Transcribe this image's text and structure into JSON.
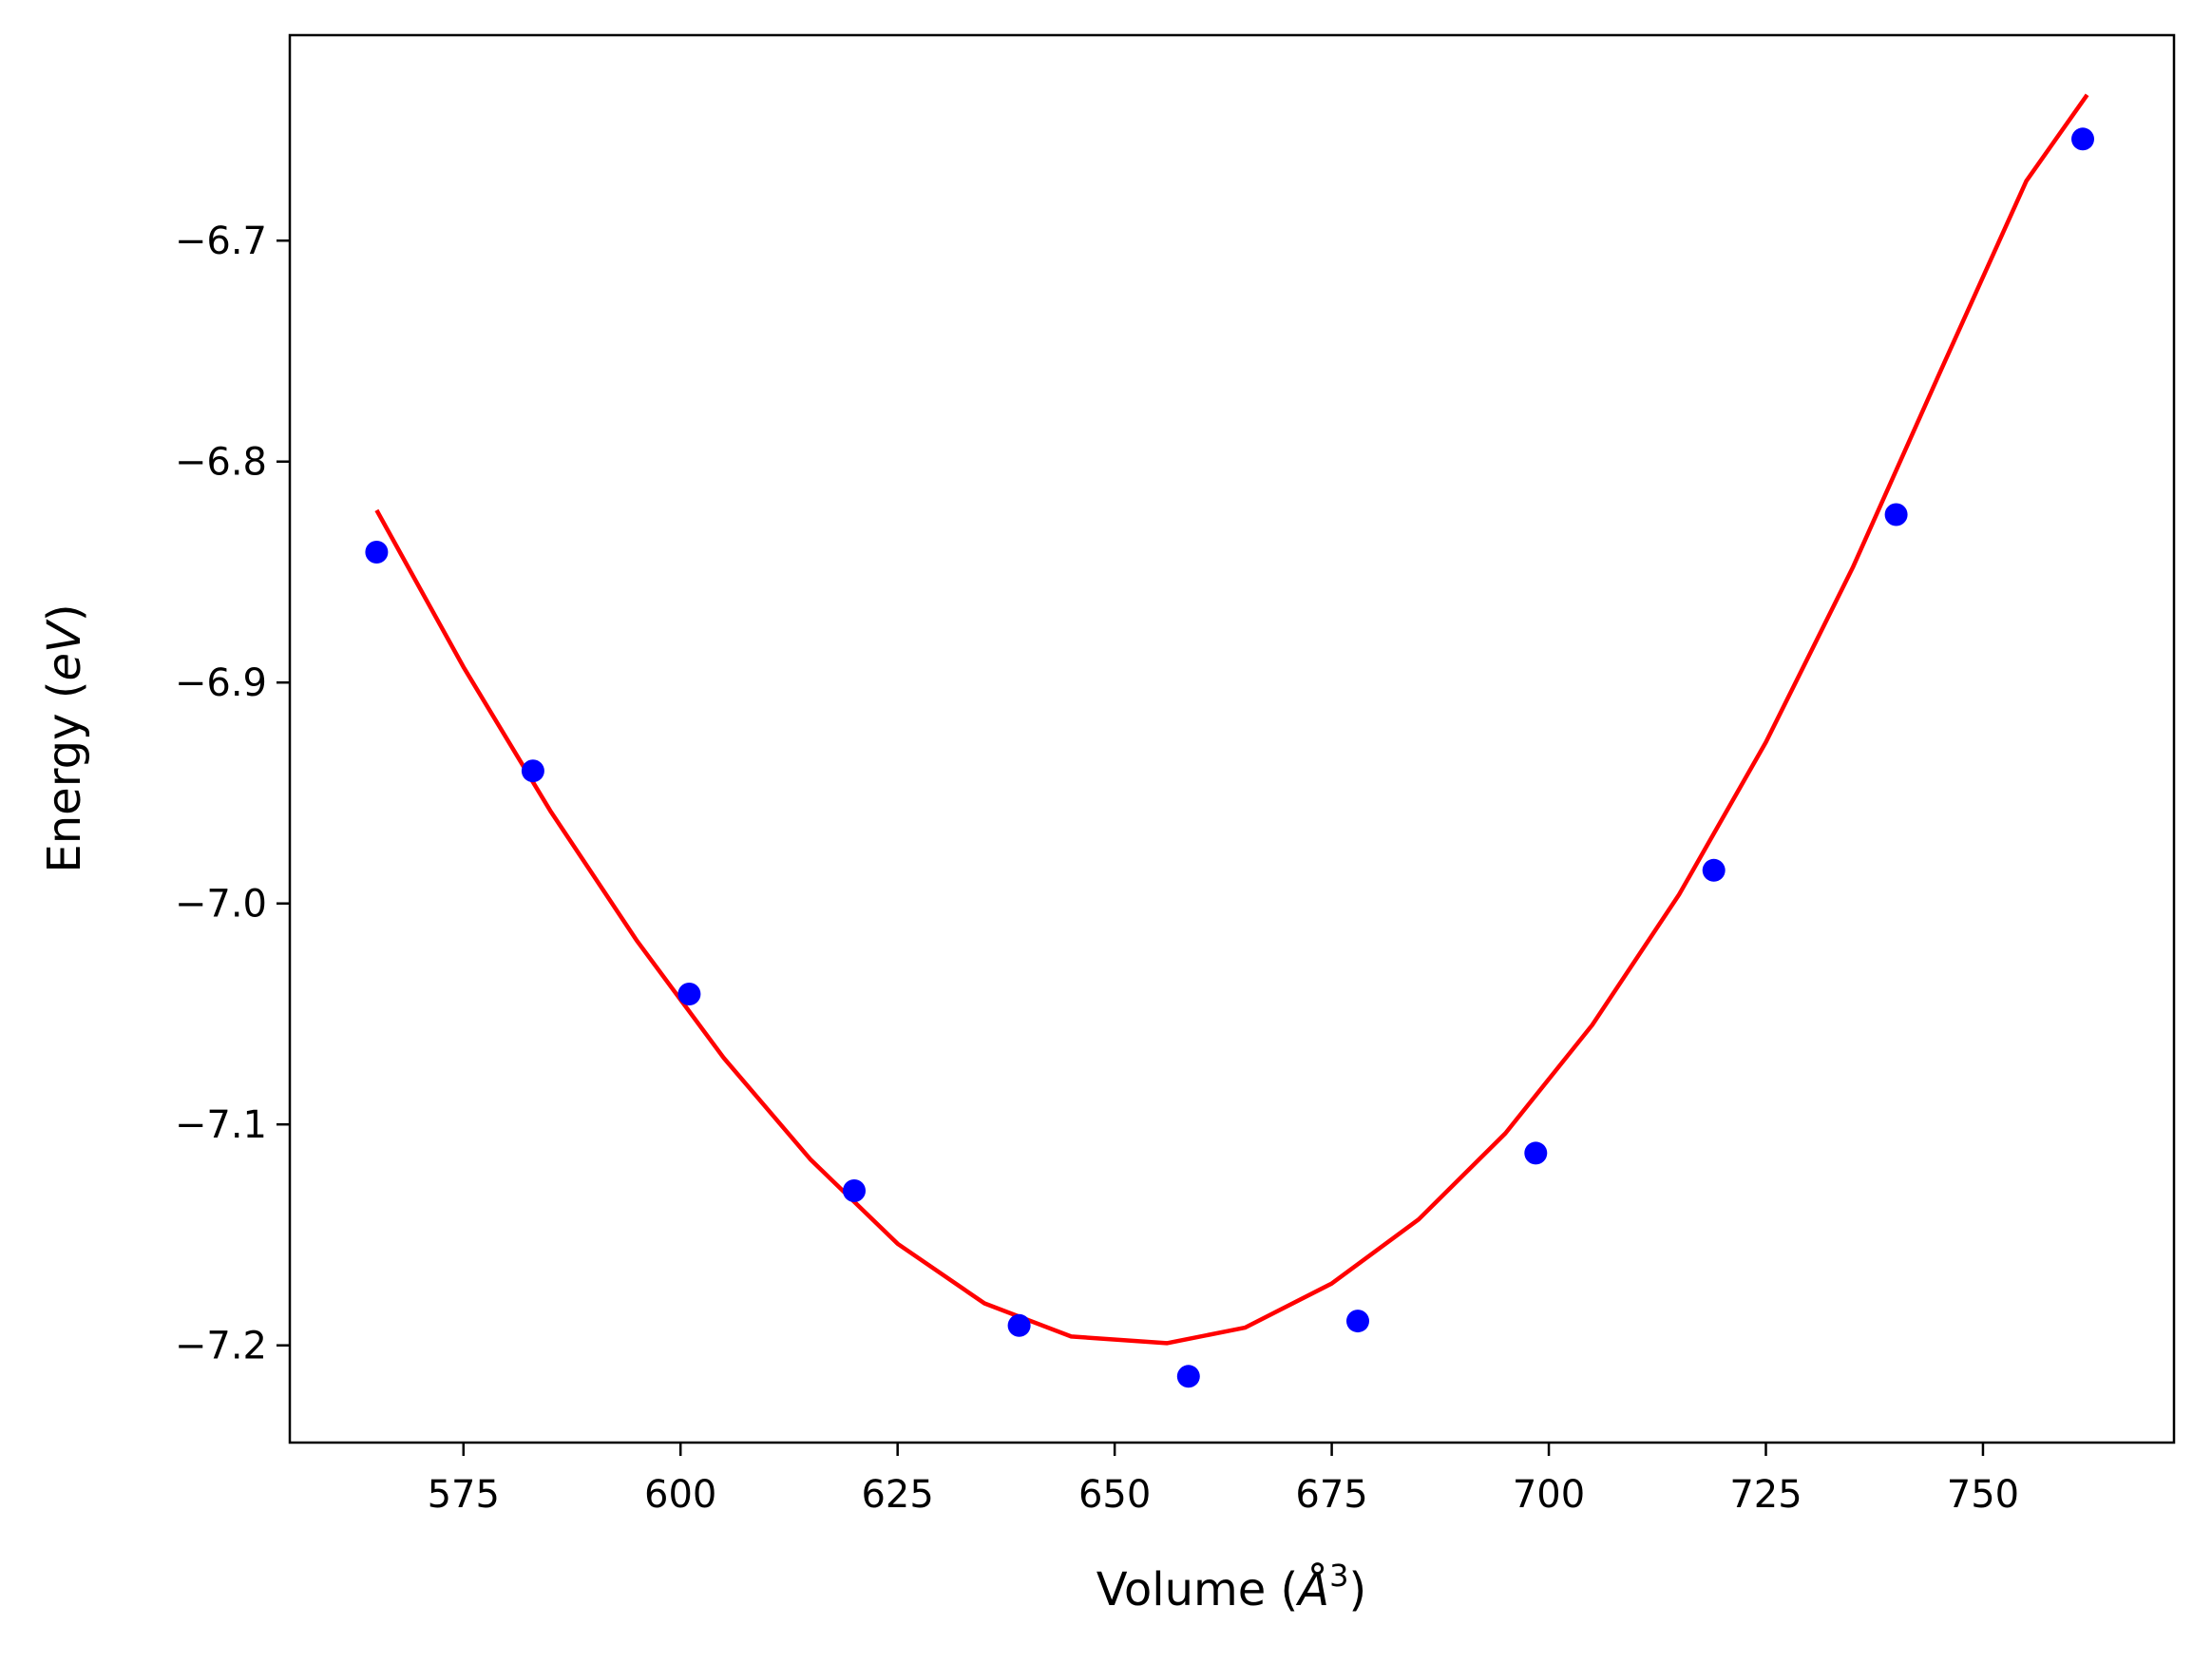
{
  "chart_data": {
    "type": "scatter",
    "title": "",
    "xlabel": "Volume (Å³)",
    "ylabel": "Energy (eV)",
    "xlabel_parts": {
      "pre": "Volume (",
      "sym": "Å",
      "sup": "3",
      "post": ")"
    },
    "ylabel_parts": {
      "pre": "Energy (",
      "sym": "eV",
      "post": ")"
    },
    "xlim": [
      555,
      772
    ],
    "ylim": [
      -7.244,
      -6.607
    ],
    "x_ticks": [
      575,
      600,
      625,
      650,
      675,
      700,
      725,
      750
    ],
    "x_tick_labels": [
      "575",
      "600",
      "625",
      "650",
      "675",
      "700",
      "725",
      "750"
    ],
    "y_ticks": [
      -7.2,
      -7.1,
      -7.0,
      -6.9,
      -6.8,
      -6.7
    ],
    "y_tick_labels": [
      "−7.2",
      "−7.1",
      "−7.0",
      "−6.9",
      "−6.8",
      "−6.7"
    ],
    "grid": false,
    "series": [
      {
        "kind": "points",
        "color": "#0000ff",
        "x": [
          565,
          583,
          601,
          620,
          639,
          658.5,
          678,
          698.5,
          719,
          740,
          761.5
        ],
        "y": [
          -6.841,
          -6.94,
          -7.041,
          -7.13,
          -7.191,
          -7.214,
          -7.189,
          -7.113,
          -6.985,
          -6.824,
          -6.654
        ]
      },
      {
        "kind": "fit-line",
        "color": "#ff0000",
        "x": [
          565,
          575,
          585,
          595,
          605,
          615,
          625,
          635,
          645,
          656,
          665,
          675,
          685,
          695,
          705,
          715,
          725,
          735,
          745,
          755,
          762
        ],
        "y": [
          -6.822,
          -6.893,
          -6.958,
          -7.017,
          -7.07,
          -7.116,
          -7.154,
          -7.181,
          -7.196,
          -7.199,
          -7.192,
          -7.172,
          -7.143,
          -7.104,
          -7.055,
          -6.996,
          -6.927,
          -6.848,
          -6.76,
          -6.673,
          -6.634
        ]
      }
    ]
  }
}
